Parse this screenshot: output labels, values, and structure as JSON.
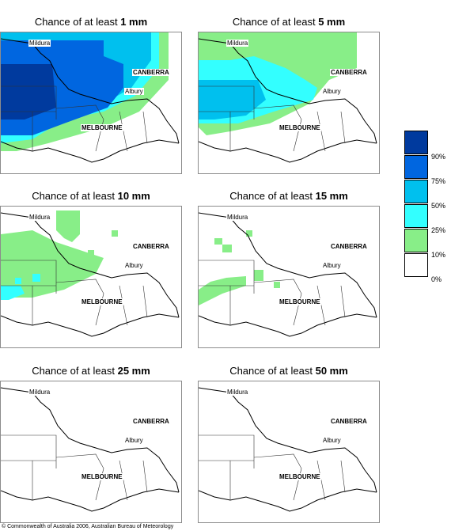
{
  "panels": [
    {
      "title_prefix": "Chance of at least ",
      "threshold": "1 mm"
    },
    {
      "title_prefix": "Chance of at least ",
      "threshold": "5 mm"
    },
    {
      "title_prefix": "Chance of at least ",
      "threshold": "10 mm"
    },
    {
      "title_prefix": "Chance of at least ",
      "threshold": "15 mm"
    },
    {
      "title_prefix": "Chance of at least ",
      "threshold": "25 mm"
    },
    {
      "title_prefix": "Chance of at least ",
      "threshold": "50 mm"
    }
  ],
  "places": {
    "mildura": "Mildura",
    "canberra": "CANBERRA",
    "albury": "Albury",
    "melbourne": "MELBOURNE"
  },
  "legend": {
    "colors": [
      "#003a9e",
      "#0066e0",
      "#00c0ee",
      "#33ffff",
      "#88ee88",
      "#ffffff"
    ],
    "ticks": [
      "90%",
      "75%",
      "50%",
      "25%",
      "10%",
      "0%"
    ]
  },
  "copyright": "© Commonwealth of Australia 2006, Australian Bureau of Meteorology"
}
